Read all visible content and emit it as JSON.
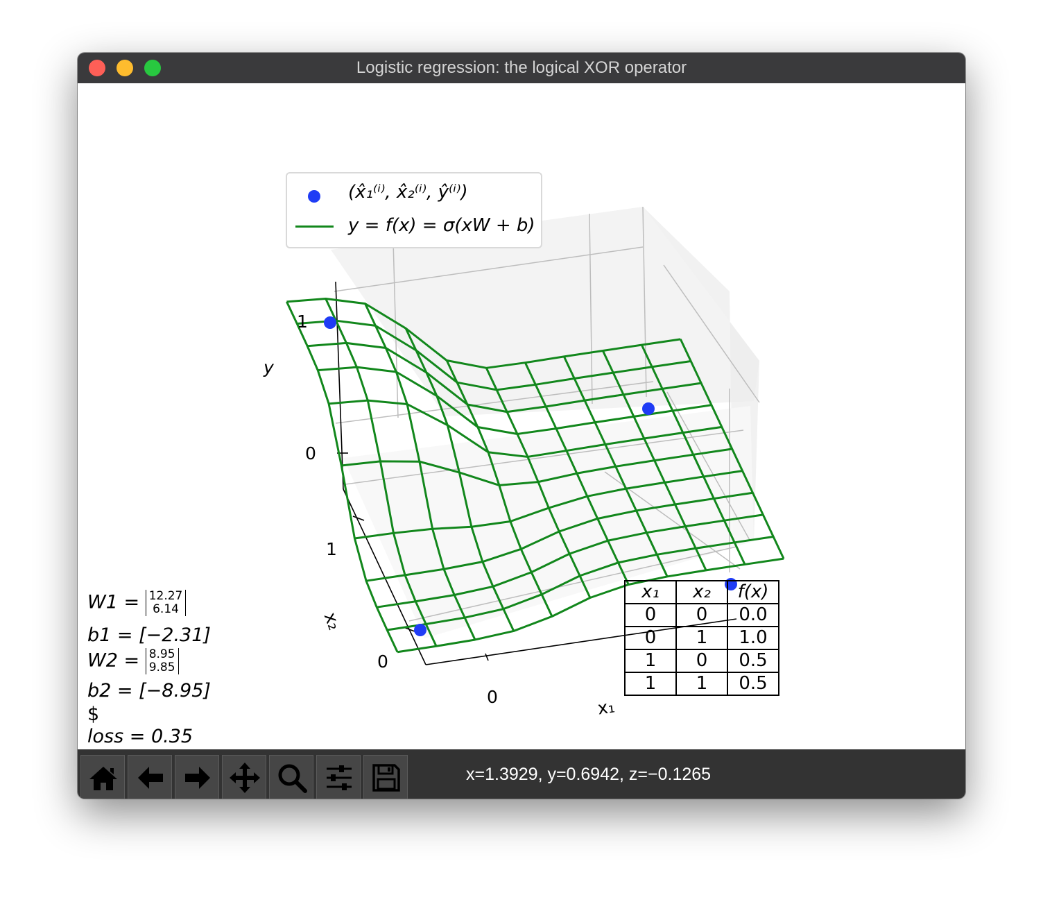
{
  "window": {
    "title": "Logistic regression: the logical XOR operator"
  },
  "legend": {
    "points_label": "(x̂₁⁽ⁱ⁾, x̂₂⁽ⁱ⁾, ŷ⁽ⁱ⁾)",
    "surface_label": "y = f(x) = σ(xW + b)"
  },
  "params": {
    "w1_name": "W1 =",
    "w1_values": [
      "12.27",
      "6.14"
    ],
    "b1": "b1 = [−2.31]",
    "w2_name": "W2 =",
    "w2_values": [
      "8.95",
      "9.85"
    ],
    "b2": "b2 = [−8.95]",
    "dollar": "$",
    "loss": "loss = 0.35"
  },
  "truth_table": {
    "headers": [
      "x₁",
      "x₂",
      "f(x)"
    ],
    "rows": [
      [
        "0",
        "0",
        "0.0"
      ],
      [
        "0",
        "1",
        "1.0"
      ],
      [
        "1",
        "0",
        "0.5"
      ],
      [
        "1",
        "1",
        "0.5"
      ]
    ]
  },
  "toolbar": {
    "buttons": [
      {
        "name": "home-icon"
      },
      {
        "name": "back-arrow-icon"
      },
      {
        "name": "forward-arrow-icon"
      },
      {
        "name": "pan-move-icon"
      },
      {
        "name": "zoom-magnifier-icon"
      },
      {
        "name": "configure-sliders-icon"
      },
      {
        "name": "save-floppy-icon"
      }
    ],
    "coords": "x=1.3929, y=0.6942, z=−0.1265"
  },
  "chart_data": {
    "type": "surface3d",
    "xlabel": "x₁",
    "ylabel": "x₂",
    "zlabel": "y",
    "x_ticks": [
      "0"
    ],
    "y_ticks": [
      "0",
      "1"
    ],
    "z_ticks": [
      "0",
      "1"
    ],
    "colors": {
      "surface": "#12871c",
      "points": "#1f3cf5"
    },
    "points": [
      {
        "x1": 0,
        "x2": 0,
        "y": 0
      },
      {
        "x1": 0,
        "x2": 1,
        "y": 1
      },
      {
        "x1": 1,
        "x2": 0,
        "y": 0
      },
      {
        "x1": 1,
        "x2": 1,
        "y": 0
      }
    ],
    "grid": true,
    "legend_position": "upper-left"
  }
}
